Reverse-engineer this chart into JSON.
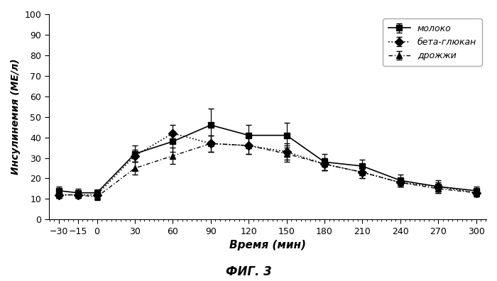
{
  "x": [
    -30,
    -15,
    0,
    30,
    60,
    90,
    120,
    150,
    180,
    210,
    240,
    270,
    300
  ],
  "moloko_y": [
    14,
    13,
    13,
    32,
    38,
    46,
    41,
    41,
    28,
    26,
    19,
    16,
    14
  ],
  "moloko_err": [
    2,
    2,
    1.5,
    4,
    5,
    8,
    5,
    6,
    4,
    3,
    3,
    3,
    2
  ],
  "beta_y": [
    12,
    12,
    12,
    31,
    42,
    37,
    36,
    33,
    27,
    23,
    18,
    16,
    13
  ],
  "beta_err": [
    1.5,
    1.5,
    1.5,
    3,
    4,
    4,
    4,
    4,
    3,
    3,
    2,
    2,
    2
  ],
  "drozhzhi_y": [
    12,
    12,
    11,
    25,
    31,
    37,
    36,
    32,
    27,
    23,
    18,
    15,
    13
  ],
  "drozhzhi_err": [
    1.5,
    1.5,
    1.5,
    3,
    4,
    4,
    4,
    4,
    3,
    3,
    2,
    2,
    2
  ],
  "xlabel": "Время (мин)",
  "ylabel": "Инсулинемия (МЕ/л)",
  "fig_title": "ФИГ. 3",
  "legend_moloko": "молоко",
  "legend_beta": "бета-глюкан",
  "legend_drozhzhi": "дрожжи",
  "ylim": [
    0,
    100
  ],
  "xlim": [
    -38,
    308
  ],
  "xticks": [
    -30,
    -15,
    0,
    30,
    60,
    90,
    120,
    150,
    180,
    210,
    240,
    270,
    300
  ],
  "yticks": [
    0,
    10,
    20,
    30,
    40,
    50,
    60,
    70,
    80,
    90,
    100
  ],
  "bg_color": "#ffffff",
  "plot_bg_color": "#ffffff",
  "line_color": "#000000",
  "capsize": 3
}
